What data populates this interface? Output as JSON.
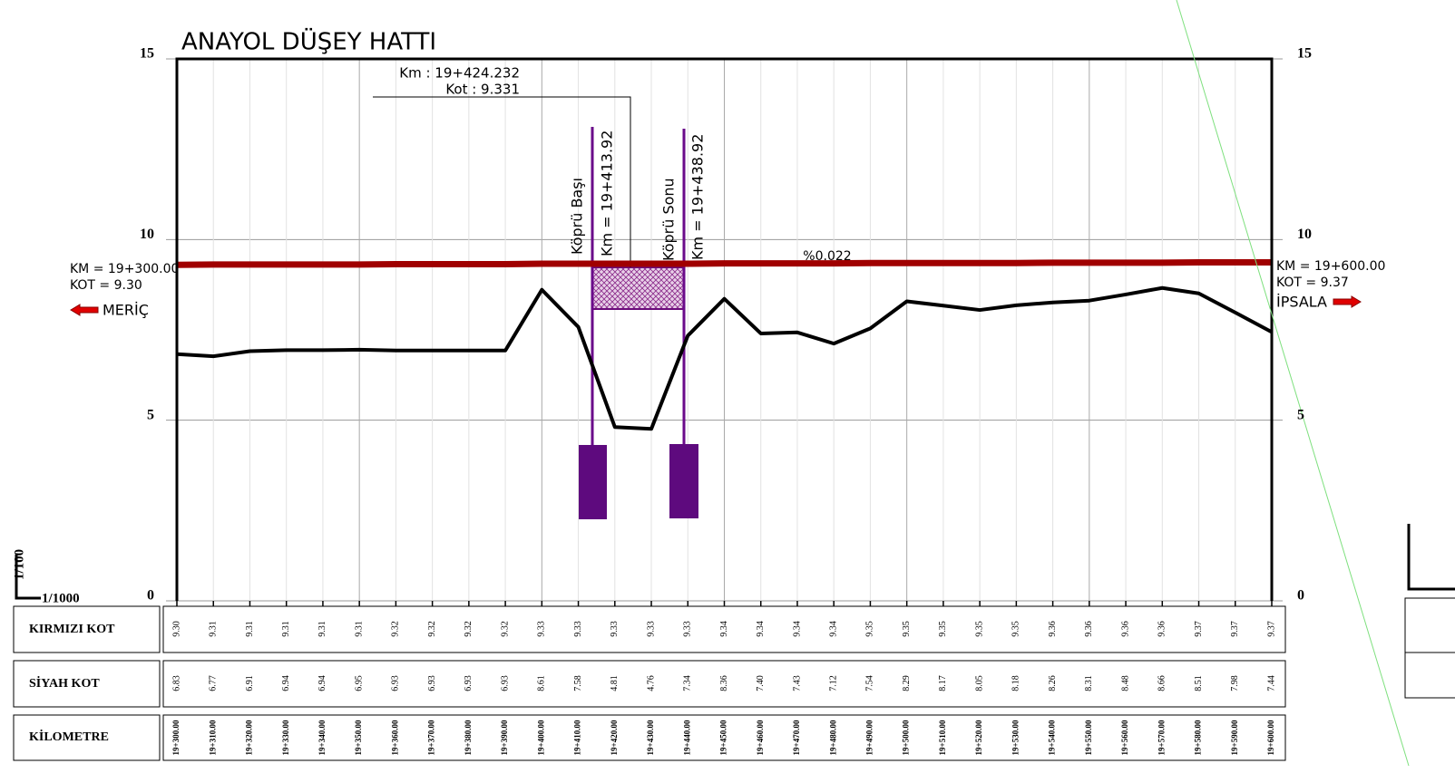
{
  "chart_data": {
    "type": "line",
    "title": "ANAYOL DÜŞEY HATTI",
    "categories": [
      "19+300.00",
      "19+310.00",
      "19+320.00",
      "19+330.00",
      "19+340.00",
      "19+350.00",
      "19+360.00",
      "19+370.00",
      "19+380.00",
      "19+390.00",
      "19+400.00",
      "19+410.00",
      "19+420.00",
      "19+430.00",
      "19+440.00",
      "19+450.00",
      "19+460.00",
      "19+470.00",
      "19+480.00",
      "19+490.00",
      "19+500.00",
      "19+510.00",
      "19+520.00",
      "19+530.00",
      "19+540.00",
      "19+550.00",
      "19+560.00",
      "19+570.00",
      "19+580.00",
      "19+590.00",
      "19+600.00"
    ],
    "ylim": [
      0,
      15
    ],
    "yticks": [
      0,
      5,
      10,
      15
    ],
    "grid": true,
    "series": [
      {
        "color": "#a00000",
        "values": [
          9.3,
          9.31,
          9.31,
          9.31,
          9.31,
          9.31,
          9.32,
          9.32,
          9.32,
          9.32,
          9.33,
          9.33,
          9.33,
          9.33,
          9.33,
          9.34,
          9.34,
          9.34,
          9.34,
          9.35,
          9.35,
          9.35,
          9.35,
          9.35,
          9.36,
          9.36,
          9.36,
          9.36,
          9.37,
          9.37,
          9.37
        ],
        "value_labels": [
          "9.30",
          "9.31",
          "9.31",
          "9.31",
          "9.31",
          "9.31",
          "9.32",
          "9.32",
          "9.32",
          "9.32",
          "9.33",
          "9.33",
          "9.33",
          "9.33",
          "9.33",
          "9.34",
          "9.34",
          "9.34",
          "9.34",
          "9.35",
          "9.35",
          "9.35",
          "9.35",
          "9.35",
          "9.36",
          "9.36",
          "9.36",
          "9.36",
          "9.37",
          "9.37",
          "9.37"
        ]
      },
      {
        "color": "#000000",
        "values": [
          6.83,
          6.77,
          6.91,
          6.94,
          6.94,
          6.95,
          6.93,
          6.93,
          6.93,
          6.93,
          8.61,
          7.58,
          4.81,
          4.76,
          7.34,
          8.36,
          7.4,
          7.43,
          7.12,
          7.54,
          8.29,
          8.17,
          8.05,
          8.18,
          8.26,
          8.31,
          8.48,
          8.66,
          8.51,
          7.98,
          7.44
        ],
        "value_labels": [
          "6.83",
          "6.77",
          "6.91",
          "6.94",
          "6.94",
          "6.95",
          "6.93",
          "6.93",
          "6.93",
          "6.93",
          "8.61",
          "7.58",
          "4.81",
          "4.76",
          "7.34",
          "8.36",
          "7.40",
          "7.43",
          "7.12",
          "7.54",
          "8.29",
          "8.17",
          "8.05",
          "8.18",
          "8.26",
          "8.31",
          "8.48",
          "8.66",
          "8.51",
          "7.98",
          "7.44"
        ]
      }
    ],
    "row_labels": [
      "KIRMIZI KOT",
      "SİYAH KOT",
      "KİLOMETRE"
    ],
    "annotations": {
      "callout_km": "Km : 19+424.232",
      "callout_kot": "Kot : 9.331",
      "bridge_start": "Köprü Başı",
      "bridge_start_km": "Km = 19+413.92",
      "bridge_end": "Köprü Sonu",
      "bridge_end_km": "Km = 19+438.92",
      "slope": "%0.022",
      "left_km": "KM = 19+300.00",
      "left_kot": "KOT = 9.30",
      "left_dir": "MERİÇ",
      "right_km": "KM = 19+600.00",
      "right_kot": "KOT = 9.37",
      "right_dir": "İPSALA",
      "scale_v": "1/100",
      "scale_h": "1/1000"
    }
  }
}
